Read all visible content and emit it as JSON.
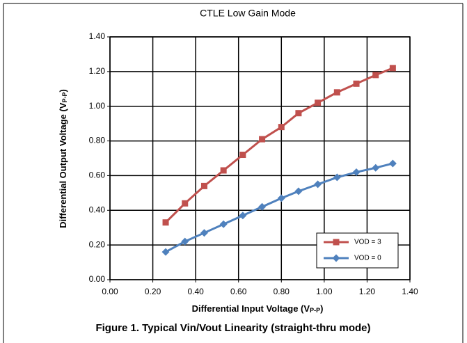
{
  "chart_data": {
    "type": "line",
    "title": "CTLE Low Gain Mode",
    "caption": "Figure 1.  Typical Vin/Vout Linearity (straight-thru mode)",
    "xlabel": {
      "text": "Differential Input Voltage (V",
      "subscript": "P-P",
      "suffix": ")"
    },
    "ylabel": {
      "text": "Differential Output Voltage (V",
      "subscript": "P-P",
      "suffix": ")"
    },
    "x": [
      0.26,
      0.35,
      0.44,
      0.53,
      0.62,
      0.71,
      0.8,
      0.88,
      0.97,
      1.06,
      1.15,
      1.24,
      1.32
    ],
    "series": [
      {
        "name": "VOD = 3",
        "color": "#c0504d",
        "marker": "square",
        "values": [
          0.33,
          0.44,
          0.54,
          0.63,
          0.72,
          0.81,
          0.88,
          0.96,
          1.02,
          1.08,
          1.13,
          1.18,
          1.22
        ]
      },
      {
        "name": "VOD = 0",
        "color": "#4f81bd",
        "marker": "diamond",
        "values": [
          0.16,
          0.22,
          0.27,
          0.32,
          0.37,
          0.42,
          0.47,
          0.51,
          0.55,
          0.59,
          0.62,
          0.645,
          0.67
        ]
      }
    ],
    "xlim": [
      0,
      1.4
    ],
    "ylim": [
      0,
      1.4
    ],
    "xticks": [
      {
        "value": 0,
        "label": "0.00"
      },
      {
        "value": 0.2,
        "label": "0.20"
      },
      {
        "value": 0.4,
        "label": "0.40"
      },
      {
        "value": 0.6,
        "label": "0.60"
      },
      {
        "value": 0.8,
        "label": "0.80"
      },
      {
        "value": 1.0,
        "label": "1.00"
      },
      {
        "value": 1.2,
        "label": "1.20"
      },
      {
        "value": 1.4,
        "label": "1.40"
      }
    ],
    "yticks": [
      {
        "value": 0,
        "label": "0.00"
      },
      {
        "value": 0.2,
        "label": "0.20"
      },
      {
        "value": 0.4,
        "label": "0.40"
      },
      {
        "value": 0.6,
        "label": "0.60"
      },
      {
        "value": 0.8,
        "label": "0.80"
      },
      {
        "value": 1.0,
        "label": "1.00"
      },
      {
        "value": 1.2,
        "label": "1.20"
      },
      {
        "value": 1.4,
        "label": "1.40"
      }
    ],
    "grid": true,
    "legend": "lower right"
  }
}
